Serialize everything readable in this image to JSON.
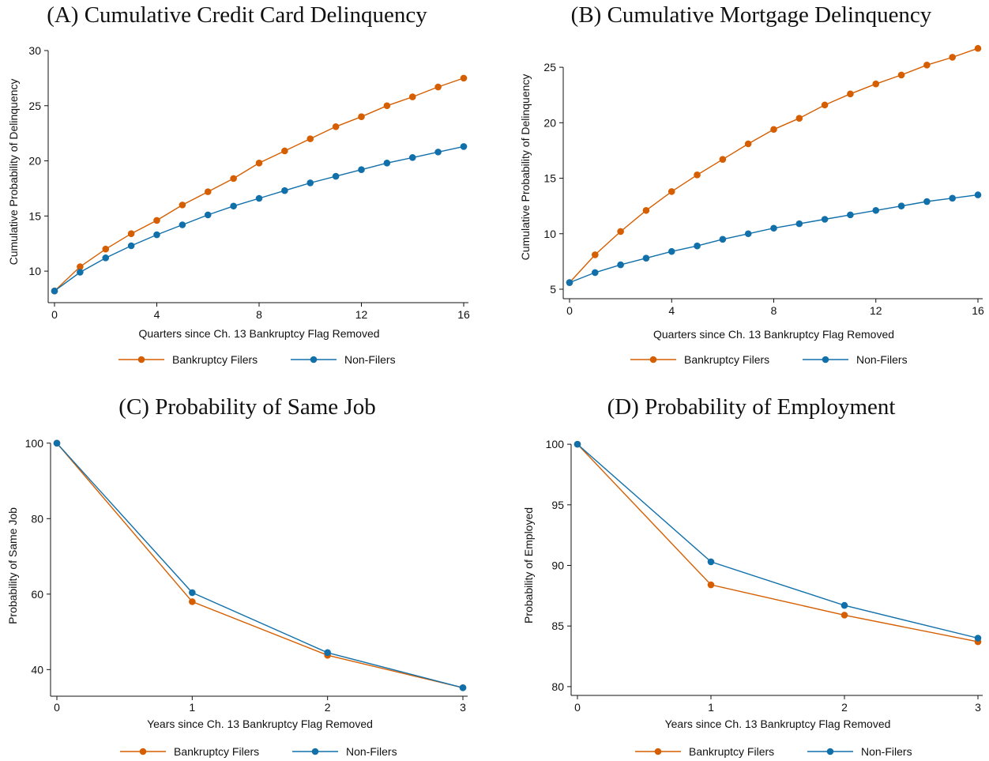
{
  "colors": {
    "filers": "#d55e00",
    "nonfilers": "#1170aa"
  },
  "chart_data": [
    {
      "type": "line",
      "title": "(A) Cumulative Credit Card Delinquency",
      "xlabel": "Quarters since Ch. 13 Bankruptcy Flag Removed",
      "ylabel": "Cumulative Probability of Delinquency",
      "xlim": [
        0,
        16
      ],
      "ylim": [
        7.5,
        30.5
      ],
      "xticks": [
        0,
        4,
        8,
        12,
        16
      ],
      "yticks": [
        10,
        15,
        20,
        25,
        30
      ],
      "x": [
        0,
        1,
        2,
        3,
        4,
        5,
        6,
        7,
        8,
        9,
        10,
        11,
        12,
        13,
        14,
        15,
        16
      ],
      "legend_position": "bottom",
      "series": [
        {
          "name": "Bankruptcy Filers",
          "color": "#d55e00",
          "values": [
            8.2,
            10.4,
            12.0,
            13.4,
            14.6,
            16.0,
            17.2,
            18.4,
            19.8,
            20.9,
            22.0,
            23.1,
            24.0,
            25.0,
            25.8,
            26.7,
            27.5
          ]
        },
        {
          "name": "Non-Filers",
          "color": "#1170aa",
          "values": [
            8.2,
            9.9,
            11.2,
            12.3,
            13.3,
            14.2,
            15.1,
            15.9,
            16.6,
            17.3,
            18.0,
            18.6,
            19.2,
            19.8,
            20.3,
            20.8,
            21.3
          ]
        }
      ]
    },
    {
      "type": "line",
      "title": "(B) Cumulative Mortgage Delinquency",
      "xlabel": "Quarters since Ch. 13 Bankruptcy Flag Removed",
      "ylabel": "Cumulative Probability of Delinquency",
      "xlim": [
        0,
        16
      ],
      "ylim": [
        4.5,
        27.5
      ],
      "xticks": [
        0,
        4,
        8,
        12,
        16
      ],
      "yticks": [
        5,
        10,
        15,
        20,
        25
      ],
      "x": [
        0,
        1,
        2,
        3,
        4,
        5,
        6,
        7,
        8,
        9,
        10,
        11,
        12,
        13,
        14,
        15,
        16
      ],
      "legend_position": "bottom",
      "series": [
        {
          "name": "Bankruptcy Filers",
          "color": "#d55e00",
          "values": [
            5.6,
            8.1,
            10.2,
            12.1,
            13.8,
            15.3,
            16.7,
            18.1,
            19.4,
            20.4,
            21.6,
            22.6,
            23.5,
            24.3,
            25.2,
            25.9,
            26.7
          ]
        },
        {
          "name": "Non-Filers",
          "color": "#1170aa",
          "values": [
            5.6,
            6.5,
            7.2,
            7.8,
            8.4,
            8.9,
            9.5,
            10.0,
            10.5,
            10.9,
            11.3,
            11.7,
            12.1,
            12.5,
            12.9,
            13.2,
            13.5
          ]
        }
      ]
    },
    {
      "type": "line",
      "title": "(C) Probability of Same Job",
      "xlabel": "Years since Ch. 13 Bankruptcy Flag Removed",
      "ylabel": "Probability of Same Job",
      "xlim": [
        0,
        3
      ],
      "ylim": [
        34,
        101
      ],
      "xticks": [
        0,
        1,
        2,
        3
      ],
      "yticks": [
        40,
        60,
        80,
        100
      ],
      "x": [
        0,
        1,
        2,
        3
      ],
      "legend_position": "bottom",
      "series": [
        {
          "name": "Bankruptcy Filers",
          "color": "#d55e00",
          "values": [
            100,
            58.0,
            43.8,
            35.2
          ]
        },
        {
          "name": "Non-Filers",
          "color": "#1170aa",
          "values": [
            100,
            60.4,
            44.5,
            35.2
          ]
        }
      ]
    },
    {
      "type": "line",
      "title": "(D) Probability of Employment",
      "xlabel": "Years since Ch. 13 Bankruptcy Flag Removed",
      "ylabel": "Probability of Employed",
      "xlim": [
        0,
        3
      ],
      "ylim": [
        79.6,
        100.4
      ],
      "xticks": [
        0,
        1,
        2,
        3
      ],
      "yticks": [
        80,
        85,
        90,
        95,
        100
      ],
      "x": [
        0,
        1,
        2,
        3
      ],
      "legend_position": "bottom",
      "series": [
        {
          "name": "Bankruptcy Filers",
          "color": "#d55e00",
          "values": [
            100,
            88.4,
            85.9,
            83.7
          ]
        },
        {
          "name": "Non-Filers",
          "color": "#1170aa",
          "values": [
            100,
            90.3,
            86.7,
            84.0
          ]
        }
      ]
    }
  ]
}
